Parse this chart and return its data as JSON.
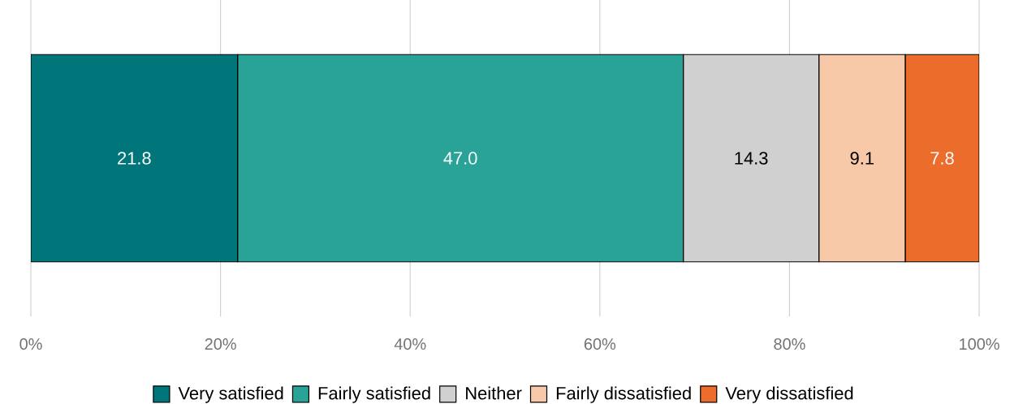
{
  "chart_data": {
    "type": "bar",
    "orientation": "horizontal",
    "stacked": true,
    "categories": [
      null
    ],
    "series": [
      {
        "name": "Very satisfied",
        "color": "#00767b",
        "values": [
          21.8
        ],
        "value_labels": [
          "21.8"
        ]
      },
      {
        "name": "Fairly satisfied",
        "color": "#29a398",
        "values": [
          47.0
        ],
        "value_labels": [
          "47.0"
        ]
      },
      {
        "name": "Neither",
        "color": "#d0d0d0",
        "values": [
          14.3
        ],
        "value_labels": [
          "14.3"
        ]
      },
      {
        "name": "Fairly dissatisfied",
        "color": "#f8c9a9",
        "values": [
          9.1
        ],
        "value_labels": [
          "9.1"
        ]
      },
      {
        "name": "Very dissatisfied",
        "color": "#ec6c2c",
        "values": [
          7.8
        ],
        "value_labels": [
          "7.8"
        ]
      }
    ],
    "xlim": [
      0,
      100
    ],
    "xticks": [
      {
        "value": 0,
        "label": "0%"
      },
      {
        "value": 20,
        "label": "20%"
      },
      {
        "value": 40,
        "label": "40%"
      },
      {
        "value": 60,
        "label": "60%"
      },
      {
        "value": 80,
        "label": "80%"
      },
      {
        "value": 100,
        "label": "100%"
      }
    ],
    "grid": "x",
    "legend": "bottom"
  }
}
